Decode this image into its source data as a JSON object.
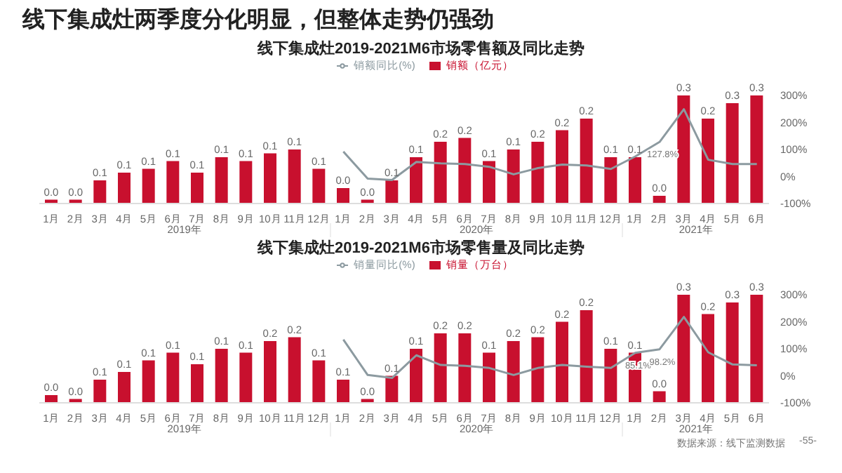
{
  "chart_data": [
    {
      "type": "bar",
      "title": "线下集成灶两季度分化明显，但整体走势仍强劲",
      "subtitle": "线下集成灶2019-2021M6市场零售额及同比走势",
      "categories": [
        "1月",
        "2月",
        "3月",
        "4月",
        "5月",
        "6月",
        "7月",
        "8月",
        "9月",
        "10月",
        "11月",
        "12月",
        "1月",
        "2月",
        "3月",
        "4月",
        "5月",
        "6月",
        "7月",
        "8月",
        "9月",
        "10月",
        "11月",
        "12月",
        "1月",
        "2月",
        "3月",
        "4月",
        "5月",
        "6月"
      ],
      "series": [
        {
          "name": "销额（亿元）",
          "color": "#c8102e",
          "values": [
            0.01,
            0.01,
            0.06,
            0.08,
            0.09,
            0.11,
            0.08,
            0.12,
            0.11,
            0.13,
            0.14,
            0.09,
            0.04,
            0.01,
            0.06,
            0.12,
            0.16,
            0.17,
            0.11,
            0.14,
            0.16,
            0.19,
            0.22,
            0.12,
            0.12,
            0.02,
            0.28,
            0.22,
            0.26,
            0.28
          ],
          "value_labels": [
            "0.0",
            "0.0",
            "0.1",
            "0.1",
            "0.1",
            "0.1",
            "0.1",
            "0.1",
            "0.1",
            "0.1",
            "0.1",
            "0.1",
            "0.0",
            "0.0",
            "0.1",
            "0.1",
            "0.2",
            "0.2",
            "0.1",
            "0.1",
            "0.2",
            "0.2",
            "0.2",
            "0.1",
            "0.1",
            "0.0",
            "0.3",
            "0.2",
            "0.3",
            "0.3"
          ]
        },
        {
          "name": "销额同比(%)",
          "type": "line",
          "axis": "y2",
          "color": "#8c9aa0",
          "values": [
            null,
            null,
            null,
            null,
            null,
            null,
            null,
            null,
            null,
            null,
            null,
            null,
            92,
            -8,
            -13,
            54,
            49,
            46,
            36,
            8,
            31,
            44,
            41,
            28,
            74,
            127.8,
            249,
            62,
            46,
            46
          ],
          "value_labels": [
            null,
            null,
            null,
            null,
            null,
            null,
            null,
            null,
            null,
            null,
            null,
            null,
            null,
            null,
            null,
            null,
            null,
            null,
            null,
            null,
            null,
            null,
            null,
            null,
            null,
            "127.8%",
            null,
            null,
            null,
            null
          ]
        }
      ],
      "y2lim": [
        -100,
        300
      ],
      "y2ticks": [
        {
          "value": -100,
          "label": "-100%"
        },
        {
          "value": 0,
          "label": "0%"
        },
        {
          "value": 100,
          "label": "100%"
        },
        {
          "value": 200,
          "label": "200%"
        },
        {
          "value": 300,
          "label": "300%"
        }
      ],
      "legend": "top",
      "marker": "none",
      "annotations": [
        "2019年",
        "2020年",
        "2021年"
      ]
    },
    {
      "type": "bar",
      "title": "线下集成灶2019-2021M6市场零售量及同比走势",
      "categories": [
        "1月",
        "2月",
        "3月",
        "4月",
        "5月",
        "6月",
        "7月",
        "8月",
        "9月",
        "10月",
        "11月",
        "12月",
        "1月",
        "2月",
        "3月",
        "4月",
        "5月",
        "6月",
        "7月",
        "8月",
        "9月",
        "10月",
        "11月",
        "12月",
        "1月",
        "2月",
        "3月",
        "4月",
        "5月",
        "6月"
      ],
      "series": [
        {
          "name": "销量（万台）",
          "color": "#c8102e",
          "values": [
            0.02,
            0.01,
            0.06,
            0.08,
            0.11,
            0.13,
            0.1,
            0.14,
            0.13,
            0.16,
            0.17,
            0.11,
            0.06,
            0.01,
            0.07,
            0.14,
            0.18,
            0.18,
            0.13,
            0.16,
            0.17,
            0.21,
            0.24,
            0.14,
            0.13,
            0.03,
            0.28,
            0.23,
            0.26,
            0.28
          ],
          "value_labels": [
            "0.0",
            "0.0",
            "0.1",
            "0.1",
            "0.1",
            "0.1",
            "0.1",
            "0.1",
            "0.1",
            "0.2",
            "0.2",
            "0.1",
            "0.1",
            "0.0",
            "0.1",
            "0.1",
            "0.2",
            "0.2",
            "0.1",
            "0.2",
            "0.2",
            "0.2",
            "0.2",
            "0.1",
            "0.1",
            "0.0",
            "0.3",
            "0.2",
            "0.3",
            "0.3"
          ]
        },
        {
          "name": "销量同比(%)",
          "type": "line",
          "axis": "y2",
          "color": "#8c9aa0",
          "values": [
            null,
            null,
            null,
            null,
            null,
            null,
            null,
            null,
            null,
            null,
            null,
            null,
            134,
            3,
            -8,
            76,
            40,
            37,
            29,
            3,
            29,
            40,
            34,
            29,
            85.1,
            98.2,
            218,
            87,
            42,
            39
          ],
          "value_labels": [
            null,
            null,
            null,
            null,
            null,
            null,
            null,
            null,
            null,
            null,
            null,
            null,
            null,
            null,
            null,
            null,
            null,
            null,
            null,
            null,
            null,
            null,
            null,
            null,
            "85.1%",
            "98.2%",
            null,
            null,
            null,
            null
          ]
        }
      ],
      "y2lim": [
        -100,
        300
      ],
      "y2ticks": [
        {
          "value": -100,
          "label": "-100%"
        },
        {
          "value": 0,
          "label": "0%"
        },
        {
          "value": 100,
          "label": "100%"
        },
        {
          "value": 200,
          "label": "200%"
        },
        {
          "value": 300,
          "label": "300%"
        }
      ],
      "legend": "top",
      "marker": "none",
      "annotations": [
        "2019年",
        "2020年",
        "2021年",
        "数据来源：线下监测数据",
        "-55-"
      ]
    }
  ]
}
